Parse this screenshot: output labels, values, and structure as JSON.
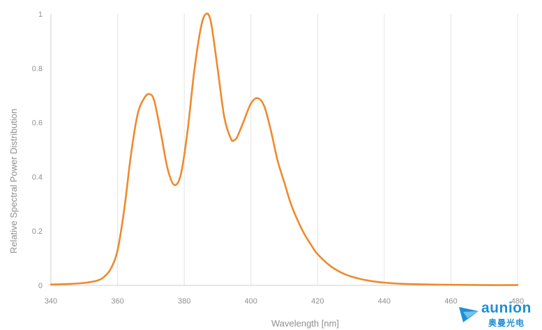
{
  "chart_data": {
    "type": "line",
    "title": "",
    "xlabel": "Wavelength [nm]",
    "ylabel": "Relative Spectral Power Distribution",
    "xlim": [
      340,
      480
    ],
    "ylim": [
      0,
      1
    ],
    "x_ticks": [
      340,
      360,
      380,
      400,
      420,
      440,
      460,
      480
    ],
    "y_ticks": [
      0,
      0.2,
      0.4,
      0.6,
      0.8,
      1
    ],
    "y_tick_labels": [
      "0",
      "0.2",
      "0.4",
      "0.6",
      "0.8",
      "1"
    ],
    "grid": "vertical",
    "series": [
      {
        "color": "#ee8a2c",
        "x": [
          340,
          345,
          350,
          354,
          356,
          358,
          360,
          362,
          364,
          366,
          368,
          369.5,
          371,
          373,
          375,
          377,
          379,
          381,
          383,
          385,
          386.5,
          388,
          390,
          392,
          394,
          395,
          396,
          398,
          400,
          402,
          404,
          406,
          408,
          410,
          412,
          414,
          416,
          418,
          420,
          424,
          428,
          432,
          436,
          440,
          445,
          450,
          460,
          470,
          480
        ],
        "y": [
          0.003,
          0.005,
          0.009,
          0.018,
          0.032,
          0.062,
          0.13,
          0.28,
          0.48,
          0.63,
          0.69,
          0.705,
          0.68,
          0.56,
          0.43,
          0.37,
          0.41,
          0.57,
          0.79,
          0.95,
          1.0,
          0.97,
          0.8,
          0.62,
          0.54,
          0.535,
          0.55,
          0.61,
          0.67,
          0.69,
          0.66,
          0.57,
          0.46,
          0.38,
          0.3,
          0.24,
          0.19,
          0.15,
          0.115,
          0.07,
          0.042,
          0.026,
          0.016,
          0.01,
          0.006,
          0.004,
          0.002,
          0.001,
          0.001
        ]
      }
    ]
  },
  "logo": {
    "name": "aunion",
    "subtitle": "奥曼光电"
  }
}
